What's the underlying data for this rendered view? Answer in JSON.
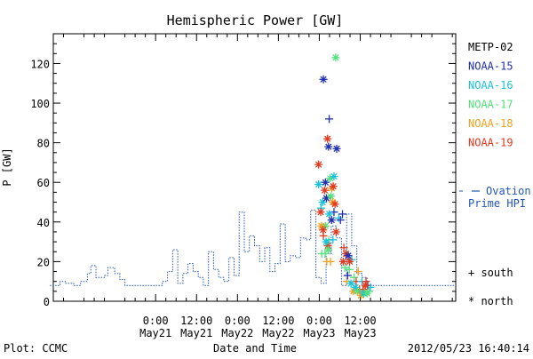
{
  "chart_data": {
    "type": "scatter",
    "title": "Hemispheric Power [GW]",
    "ylabel": "P [GW]",
    "xlabel": "Date and Time",
    "ylim": [
      0,
      135
    ],
    "xlim": [
      -7,
      16.5
    ],
    "x_unit": "hours relative to 2012-05-23 00:00 UT",
    "y_ticks": [
      0,
      20,
      40,
      60,
      80,
      100,
      120
    ],
    "x_ticks": [
      {
        "x": -72,
        "time": "0:00",
        "date": "May21"
      },
      {
        "x": -60,
        "time": "12:00",
        "date": "May21"
      },
      {
        "x": -48,
        "time": "0:00",
        "date": "May22"
      },
      {
        "x": -36,
        "time": "12:00",
        "date": "May22"
      },
      {
        "x": -24,
        "time": "0:00",
        "date": "May23"
      },
      {
        "x": -12,
        "time": "12:00",
        "date": "May23"
      }
    ],
    "series_legend": [
      {
        "name": "METP-02",
        "color": "#000000"
      },
      {
        "name": "NOAA-15",
        "color": "#1f2fb0"
      },
      {
        "name": "NOAA-16",
        "color": "#19c3d8"
      },
      {
        "name": "NOAA-17",
        "color": "#52e07a"
      },
      {
        "name": "NOAA-18",
        "color": "#f0a020"
      },
      {
        "name": "NOAA-19",
        "color": "#e03a1e"
      }
    ],
    "ovation": {
      "label_line1": "Ovation",
      "label_line2": "Prime HPI",
      "color": "#2456b8",
      "points": [
        [
          -103,
          8
        ],
        [
          -100,
          8
        ],
        [
          -100,
          10
        ],
        [
          -98.5,
          10
        ],
        [
          -98.5,
          9
        ],
        [
          -96,
          9
        ],
        [
          -96,
          8
        ],
        [
          -94,
          8
        ],
        [
          -94,
          10
        ],
        [
          -92,
          10
        ],
        [
          -92,
          14
        ],
        [
          -91,
          14
        ],
        [
          -91,
          18
        ],
        [
          -89.5,
          18
        ],
        [
          -89.5,
          12
        ],
        [
          -87,
          12
        ],
        [
          -87,
          13
        ],
        [
          -86,
          13
        ],
        [
          -86,
          17
        ],
        [
          -84,
          17
        ],
        [
          -84,
          14
        ],
        [
          -82.5,
          14
        ],
        [
          -82.5,
          11
        ],
        [
          -81,
          11
        ],
        [
          -81,
          8
        ],
        [
          -70,
          8
        ],
        [
          -70,
          10
        ],
        [
          -68.5,
          10
        ],
        [
          -68.5,
          15
        ],
        [
          -67,
          15
        ],
        [
          -67,
          26
        ],
        [
          -65.5,
          26
        ],
        [
          -65.5,
          9
        ],
        [
          -64,
          9
        ],
        [
          -64,
          14
        ],
        [
          -62.5,
          14
        ],
        [
          -62.5,
          19
        ],
        [
          -61,
          19
        ],
        [
          -61,
          15
        ],
        [
          -59.5,
          15
        ],
        [
          -59.5,
          12
        ],
        [
          -58,
          12
        ],
        [
          -58,
          8
        ],
        [
          -56.5,
          8
        ],
        [
          -56.5,
          25
        ],
        [
          -55,
          25
        ],
        [
          -55,
          16
        ],
        [
          -53.5,
          16
        ],
        [
          -53.5,
          12
        ],
        [
          -52,
          12
        ],
        [
          -52,
          10
        ],
        [
          -50.5,
          10
        ],
        [
          -50.5,
          22
        ],
        [
          -49,
          22
        ],
        [
          -49,
          13
        ],
        [
          -47.5,
          13
        ],
        [
          -47.5,
          45
        ],
        [
          -46,
          45
        ],
        [
          -46,
          25
        ],
        [
          -44.5,
          25
        ],
        [
          -44.5,
          33
        ],
        [
          -43,
          33
        ],
        [
          -43,
          28
        ],
        [
          -41.5,
          28
        ],
        [
          -41.5,
          20
        ],
        [
          -40,
          20
        ],
        [
          -40,
          27
        ],
        [
          -38.5,
          27
        ],
        [
          -38.5,
          15
        ],
        [
          -37,
          15
        ],
        [
          -37,
          19
        ],
        [
          -35.5,
          19
        ],
        [
          -35.5,
          39
        ],
        [
          -34,
          39
        ],
        [
          -34,
          20
        ],
        [
          -32.5,
          20
        ],
        [
          -32.5,
          23
        ],
        [
          -31,
          23
        ],
        [
          -31,
          22
        ],
        [
          -29.5,
          22
        ],
        [
          -29.5,
          32
        ],
        [
          -28,
          32
        ],
        [
          -28,
          31
        ],
        [
          -26.5,
          31
        ],
        [
          -26.5,
          46
        ],
        [
          -25,
          46
        ],
        [
          -25,
          12
        ],
        [
          -23.5,
          12
        ],
        [
          -23.5,
          9
        ],
        [
          -22,
          9
        ],
        [
          -22,
          24
        ],
        [
          -20.5,
          24
        ],
        [
          -20.5,
          38
        ],
        [
          -19,
          38
        ],
        [
          -19,
          32
        ],
        [
          -17.5,
          32
        ],
        [
          -17.5,
          8
        ],
        [
          -16,
          8
        ],
        [
          -16,
          44
        ],
        [
          -14.5,
          44
        ],
        [
          -14.5,
          28
        ],
        [
          -13,
          28
        ],
        [
          -13,
          14
        ],
        [
          -11.5,
          14
        ],
        [
          -11.5,
          12
        ],
        [
          -10,
          12
        ],
        [
          -10,
          8
        ],
        [
          16,
          8
        ]
      ]
    },
    "north_markers": [
      [
        1.2,
        112,
        "#1f2fb0"
      ],
      [
        -0.2,
        69,
        "#e03a1e"
      ],
      [
        -0.2,
        59,
        "#19c3d8"
      ],
      [
        1.8,
        60,
        "#1f2fb0"
      ],
      [
        2.4,
        82,
        "#e03a1e"
      ],
      [
        2.7,
        78,
        "#1f2fb0"
      ],
      [
        3.2,
        62,
        "#52e07a"
      ],
      [
        3.7,
        57,
        "#f0a020"
      ],
      [
        4.1,
        58,
        "#e03a1e"
      ],
      [
        4.3,
        63,
        "#19c3d8"
      ],
      [
        5.1,
        77,
        "#1f2fb0"
      ],
      [
        4.8,
        123,
        "#52e07a"
      ],
      [
        0.4,
        45,
        "#e03a1e"
      ],
      [
        1.0,
        50,
        "#19c3d8"
      ],
      [
        1.6,
        56,
        "#e03a1e"
      ],
      [
        2.1,
        52,
        "#1f2fb0"
      ],
      [
        2.9,
        44,
        "#19c3d8"
      ],
      [
        3.4,
        53,
        "#52e07a"
      ],
      [
        3.9,
        50,
        "#f0a020"
      ],
      [
        4.6,
        49,
        "#e03a1e"
      ],
      [
        1.8,
        38,
        "#52e07a"
      ],
      [
        2.5,
        28,
        "#e03a1e"
      ],
      [
        3.6,
        41,
        "#1f2fb0"
      ],
      [
        4.9,
        35,
        "#e03a1e"
      ],
      [
        0.6,
        38,
        "#f0a020"
      ],
      [
        1.1,
        36,
        "#e03a1e"
      ],
      [
        2.0,
        30,
        "#19c3d8"
      ],
      [
        2.6,
        26,
        "#52e07a"
      ],
      [
        7.0,
        20,
        "#e03a1e"
      ],
      [
        7.8,
        24,
        "#e03a1e"
      ],
      [
        8.5,
        23,
        "#1f2fb0"
      ],
      [
        8.9,
        20,
        "#e03a1e"
      ],
      [
        9.3,
        9,
        "#19c3d8"
      ],
      [
        10.0,
        5,
        "#f0a020"
      ],
      [
        10.6,
        7,
        "#19c3d8"
      ],
      [
        11.2,
        5,
        "#52e07a"
      ],
      [
        12.2,
        3,
        "#f0a020"
      ],
      [
        13.0,
        4,
        "#19c3d8"
      ],
      [
        13.5,
        8,
        "#e03a1e"
      ],
      [
        14.0,
        4,
        "#52e07a"
      ]
    ],
    "south_markers": [
      [
        2.9,
        92,
        "#1f2fb0"
      ],
      [
        0.5,
        47,
        "#19c3d8"
      ],
      [
        1.2,
        33,
        "#e03a1e"
      ],
      [
        1.7,
        24,
        "#52e07a"
      ],
      [
        2.2,
        20,
        "#f0a020"
      ],
      [
        2.8,
        31,
        "#52e07a"
      ],
      [
        3.3,
        20,
        "#f0a020"
      ],
      [
        4.0,
        31,
        "#19c3d8"
      ],
      [
        4.3,
        45,
        "#1f2fb0"
      ],
      [
        5.7,
        42,
        "#19c3d8"
      ],
      [
        6.2,
        41,
        "#1f2fb0"
      ],
      [
        6.8,
        44,
        "#1f2fb0"
      ],
      [
        0.7,
        24,
        "#52e07a"
      ],
      [
        7.2,
        27,
        "#e03a1e"
      ],
      [
        7.5,
        17,
        "#52e07a"
      ],
      [
        8.0,
        10,
        "#f0a020"
      ],
      [
        8.3,
        13,
        "#1f2fb0"
      ],
      [
        8.8,
        16,
        "#52e07a"
      ],
      [
        9.5,
        21,
        "#19c3d8"
      ],
      [
        10.2,
        12,
        "#52e07a"
      ],
      [
        10.8,
        10,
        "#e03a1e"
      ],
      [
        11.4,
        15,
        "#f0a020"
      ],
      [
        11.8,
        6,
        "#e03a1e"
      ],
      [
        12.5,
        10,
        "#19c3d8"
      ],
      [
        12.8,
        6,
        "#e03a1e"
      ],
      [
        13.3,
        5,
        "#f0a020"
      ],
      [
        13.7,
        10,
        "#e03a1e"
      ],
      [
        14.2,
        8,
        "#1f2fb0"
      ],
      [
        14.6,
        5,
        "#52e07a"
      ],
      [
        15.0,
        7,
        "#19c3d8"
      ]
    ],
    "marker_legend": [
      {
        "symbol": "+",
        "label": "south"
      },
      {
        "symbol": "*",
        "label": "north"
      }
    ]
  },
  "footer": {
    "plot_credit": "Plot: CCMC",
    "timestamp": "2012/05/23 16:40:14"
  }
}
